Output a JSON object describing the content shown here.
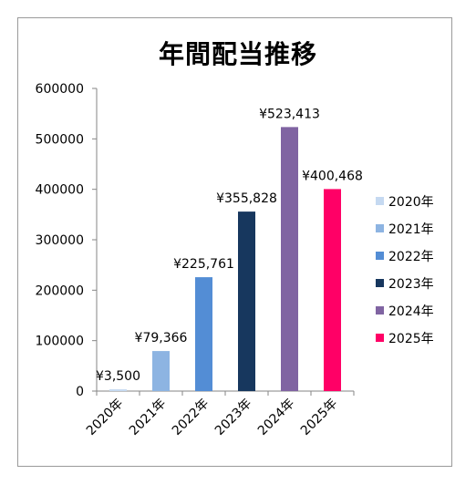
{
  "chart_data": {
    "type": "bar",
    "title": "年間配当推移",
    "categories": [
      "2020年",
      "2021年",
      "2022年",
      "2023年",
      "2024年",
      "2025年"
    ],
    "values": [
      3500,
      79366,
      225761,
      355828,
      523413,
      400468
    ],
    "data_labels": [
      "¥3,500",
      "¥79,366",
      "¥225,761",
      "¥355,828",
      "¥523,413",
      "¥400,468"
    ],
    "colors": [
      "#c5d9f1",
      "#8db4e2",
      "#538dd5",
      "#17375e",
      "#8064a2",
      "#ff0066"
    ],
    "y_ticks": [
      "0",
      "100000",
      "200000",
      "300000",
      "400000",
      "500000",
      "600000"
    ],
    "ylim": [
      0,
      600000
    ],
    "grid": false,
    "legend": {
      "position": "right",
      "entries": [
        "2020年",
        "2021年",
        "2022年",
        "2023年",
        "2024年",
        "2025年"
      ]
    }
  }
}
